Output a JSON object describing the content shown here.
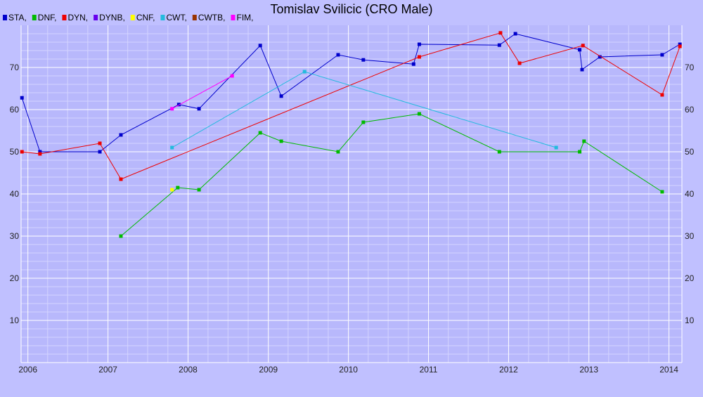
{
  "chart_data": {
    "type": "line",
    "title": "Tomislav Svilicic (CRO Male)",
    "xlabel": "",
    "ylabel": "",
    "x_range": [
      "2005-12-01",
      "2014-03-01"
    ],
    "ylim": [
      0,
      80
    ],
    "x_ticks": [
      {
        "label": "2006",
        "date": "2006-01-01"
      },
      {
        "label": "2007",
        "date": "2007-01-01"
      },
      {
        "label": "2008",
        "date": "2008-01-01"
      },
      {
        "label": "2009",
        "date": "2009-01-01"
      },
      {
        "label": "2010",
        "date": "2010-01-01"
      },
      {
        "label": "2011",
        "date": "2011-01-01"
      },
      {
        "label": "2012",
        "date": "2012-01-01"
      },
      {
        "label": "2013",
        "date": "2013-01-01"
      },
      {
        "label": "2014",
        "date": "2014-01-01"
      }
    ],
    "y_ticks": [
      10,
      20,
      30,
      40,
      50,
      60,
      70
    ],
    "grid": true,
    "legend_position": "top-left",
    "legend": [
      {
        "label": "STA,",
        "color": "#0000cc"
      },
      {
        "label": "DNF,",
        "color": "#00bb00"
      },
      {
        "label": "DYN,",
        "color": "#ee0000"
      },
      {
        "label": "DYNB,",
        "color": "#6600ee"
      },
      {
        "label": "CNF,",
        "color": "#ffff00"
      },
      {
        "label": "CWT,",
        "color": "#22bbdd"
      },
      {
        "label": "CWTB,",
        "color": "#993300"
      },
      {
        "label": "FIM,",
        "color": "#ff00ff"
      }
    ],
    "series": [
      {
        "name": "STA",
        "color": "#0000cc",
        "points": [
          [
            "2005-12-05",
            62.8
          ],
          [
            "2006-02-25",
            50.0
          ],
          [
            "2006-11-25",
            50.0
          ],
          [
            "2007-03-01",
            54.0
          ],
          [
            "2007-11-20",
            61.2
          ],
          [
            "2008-02-20",
            60.2
          ],
          [
            "2008-11-25",
            75.2
          ],
          [
            "2009-03-01",
            63.2
          ],
          [
            "2009-11-15",
            73.0
          ],
          [
            "2010-03-10",
            71.8
          ],
          [
            "2010-10-25",
            70.8
          ],
          [
            "2010-11-20",
            75.5
          ],
          [
            "2011-11-20",
            75.3
          ],
          [
            "2012-02-01",
            78.0
          ],
          [
            "2012-11-20",
            74.2
          ],
          [
            "2012-12-01",
            69.5
          ],
          [
            "2013-02-20",
            72.5
          ],
          [
            "2013-12-01",
            73.0
          ],
          [
            "2014-02-20",
            75.5
          ]
        ]
      },
      {
        "name": "DNF",
        "color": "#00bb00",
        "points": [
          [
            "2007-03-01",
            30.0
          ],
          [
            "2007-11-15",
            41.5
          ],
          [
            "2008-02-20",
            41.0
          ],
          [
            "2008-11-25",
            54.5
          ],
          [
            "2009-03-01",
            52.5
          ],
          [
            "2009-11-15",
            50.0
          ],
          [
            "2010-03-10",
            57.0
          ],
          [
            "2010-11-20",
            59.0
          ],
          [
            "2011-11-20",
            50.0
          ],
          [
            "2012-11-20",
            50.0
          ],
          [
            "2012-12-10",
            52.5
          ],
          [
            "2013-12-01",
            40.5
          ]
        ]
      },
      {
        "name": "DYN",
        "color": "#ee0000",
        "points": [
          [
            "2005-12-05",
            50.0
          ],
          [
            "2006-02-25",
            49.5
          ],
          [
            "2006-11-25",
            52.0
          ],
          [
            "2007-03-01",
            43.5
          ],
          [
            "2010-11-20",
            72.5
          ],
          [
            "2011-11-25",
            78.2
          ],
          [
            "2012-02-20",
            71.0
          ],
          [
            "2012-12-05",
            75.2
          ],
          [
            "2013-12-01",
            63.5
          ],
          [
            "2014-02-20",
            75.0
          ]
        ]
      },
      {
        "name": "CNF",
        "color": "#ffff00",
        "points": [
          [
            "2007-10-20",
            41.0
          ]
        ]
      },
      {
        "name": "CWT",
        "color": "#22bbdd",
        "points": [
          [
            "2007-10-20",
            51.0
          ],
          [
            "2009-06-15",
            69.0
          ],
          [
            "2012-08-05",
            51.0
          ]
        ]
      },
      {
        "name": "FIM",
        "color": "#ff00ff",
        "points": [
          [
            "2007-10-20",
            60.2
          ],
          [
            "2008-07-20",
            68.0
          ]
        ]
      }
    ]
  }
}
